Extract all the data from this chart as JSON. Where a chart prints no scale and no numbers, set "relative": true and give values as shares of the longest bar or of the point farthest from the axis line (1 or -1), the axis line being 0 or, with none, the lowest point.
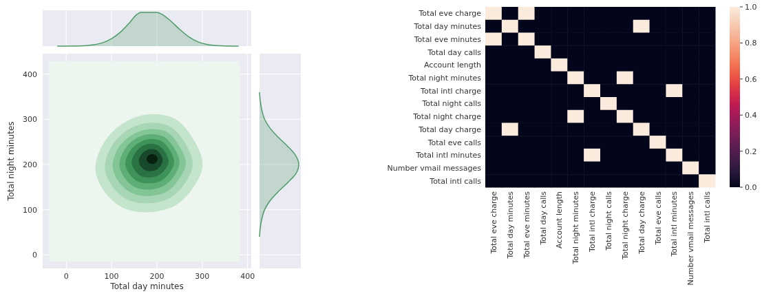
{
  "chart_data": [
    {
      "type": "area",
      "relative": true,
      "color": "#4c9a68",
      "x": [
        -20,
        40,
        60,
        80,
        100,
        120,
        140,
        155,
        165,
        200,
        210,
        230,
        250,
        270,
        290,
        310,
        340,
        380
      ],
      "values": [
        0,
        0.01,
        0.04,
        0.1,
        0.22,
        0.42,
        0.7,
        0.93,
        1,
        1,
        0.95,
        0.75,
        0.5,
        0.28,
        0.13,
        0.05,
        0.01,
        0
      ],
      "xlim": [
        -52,
        408
      ],
      "xticks": [
        0,
        100,
        200,
        300,
        400
      ],
      "tick_labels": false,
      "grid": "x"
    },
    {
      "type": "area",
      "xlabel": "Total day minutes",
      "ylabel": "Total night minutes",
      "xlim": [
        -52,
        408
      ],
      "ylim": [
        -30,
        445
      ],
      "xticks": [
        0,
        100,
        200,
        300,
        400
      ],
      "yticks": [
        0,
        100,
        200,
        300,
        400
      ],
      "grid": true,
      "series": [
        {
          "color": "#c4e4cc",
          "x": [
            300,
            280,
            240,
            180,
            125,
            85,
            65,
            85,
            125,
            180,
            240,
            280
          ],
          "values": [
            200,
            255,
            300,
            310,
            290,
            250,
            190,
            140,
            105,
            95,
            110,
            150
          ]
        },
        {
          "color": "#a6d6b3",
          "x": [
            278,
            262,
            229,
            180,
            135,
            102,
            86,
            102,
            135,
            180,
            229,
            262
          ],
          "values": [
            201,
            246,
            283,
            291,
            275,
            242,
            193,
            152,
            123,
            115,
            127,
            160
          ]
        },
        {
          "color": "#84c598",
          "x": [
            263,
            249,
            222,
            181,
            144,
            116,
            103,
            116,
            144,
            181,
            222,
            249
          ],
          "values": [
            203,
            240,
            271,
            277,
            264,
            237,
            196,
            162,
            138,
            131,
            141,
            169
          ]
        },
        {
          "color": "#5eae78",
          "x": [
            249,
            238,
            216,
            182,
            151,
            129,
            118,
            129,
            151,
            182,
            216,
            238
          ],
          "values": [
            204,
            235,
            260,
            266,
            255,
            232,
            199,
            171,
            151,
            145,
            154,
            176
          ]
        },
        {
          "color": "#3d935a",
          "x": [
            237,
            228,
            210,
            183,
            158,
            140,
            131,
            140,
            158,
            183,
            210,
            228
          ],
          "values": [
            206,
            231,
            251,
            255,
            246,
            228,
            201,
            179,
            163,
            159,
            165,
            183
          ]
        },
        {
          "color": "#2a7243",
          "x": [
            225,
            218,
            204,
            184,
            165,
            152,
            145,
            152,
            165,
            184,
            204,
            218
          ],
          "values": [
            207,
            226,
            241,
            245,
            238,
            224,
            204,
            187,
            175,
            172,
            177,
            190
          ]
        },
        {
          "color": "#18492b",
          "x": [
            212,
            208,
            199,
            186,
            174,
            165,
            161,
            165,
            174,
            186,
            199,
            208
          ],
          "values": [
            209,
            221,
            231,
            233,
            229,
            220,
            207,
            196,
            188,
            186,
            189,
            198
          ]
        },
        {
          "color": "#07200f",
          "x": [
            201,
            198,
            190,
            181,
            178,
            181,
            190,
            198
          ],
          "values": [
            212,
            219,
            222,
            219,
            212,
            205,
            202,
            205
          ]
        }
      ]
    },
    {
      "type": "area",
      "orientation": "horizontal",
      "relative": true,
      "color": "#4c9a68",
      "x": [
        360,
        340,
        320,
        300,
        280,
        260,
        240,
        220,
        200,
        180,
        160,
        140,
        120,
        100,
        80,
        60,
        40
      ],
      "values": [
        0,
        0.02,
        0.06,
        0.13,
        0.27,
        0.48,
        0.72,
        0.92,
        1,
        0.93,
        0.72,
        0.48,
        0.27,
        0.13,
        0.06,
        0.02,
        0
      ],
      "ylim": [
        -30,
        445
      ],
      "yticks": [
        0,
        100,
        200,
        300,
        400
      ],
      "tick_labels": false,
      "grid": "y"
    },
    {
      "type": "heatmap",
      "categories": [
        "Total eve charge",
        "Total day minutes",
        "Total eve minutes",
        "Total day calls",
        "Account length",
        "Total night minutes",
        "Total intl charge",
        "Total night calls",
        "Total night charge",
        "Total day charge",
        "Total eve calls",
        "Total intl minutes",
        "Number vmail messages",
        "Total intl calls"
      ],
      "y_categories": [
        "Total eve charge",
        "Total day minutes",
        "Total eve minutes",
        "Total day calls",
        "Account length",
        "Total night minutes",
        "Total intl charge",
        "Total night calls",
        "Total night charge",
        "Total day charge",
        "Total eve calls",
        "Total intl minutes",
        "Number vmail messages",
        "Total intl calls"
      ],
      "cells": [
        [
          1,
          0,
          1,
          0,
          0,
          0,
          0,
          0,
          0,
          0,
          0,
          0,
          0,
          0
        ],
        [
          0,
          1,
          0,
          0,
          0,
          0,
          0,
          0,
          0,
          1,
          0,
          0,
          0,
          0
        ],
        [
          1,
          0,
          1,
          0,
          0,
          0,
          0,
          0,
          0,
          0,
          0,
          0,
          0,
          0
        ],
        [
          0,
          0,
          0,
          1,
          0,
          0,
          0,
          0,
          0,
          0,
          0,
          0,
          0,
          0
        ],
        [
          0,
          0,
          0,
          0,
          1,
          0,
          0,
          0,
          0,
          0,
          0,
          0,
          0,
          0
        ],
        [
          0,
          0,
          0,
          0,
          0,
          1,
          0,
          0,
          1,
          0,
          0,
          0,
          0,
          0
        ],
        [
          0,
          0,
          0,
          0,
          0,
          0,
          1,
          0,
          0,
          0,
          0,
          1,
          0,
          0
        ],
        [
          0,
          0,
          0,
          0,
          0,
          0,
          0,
          1,
          0,
          0,
          0,
          0,
          0,
          0
        ],
        [
          0,
          0,
          0,
          0,
          0,
          1,
          0,
          0,
          1,
          0,
          0,
          0,
          0,
          0
        ],
        [
          0,
          1,
          0,
          0,
          0,
          0,
          0,
          0,
          0,
          1,
          0,
          0,
          0,
          0
        ],
        [
          0,
          0,
          0,
          0,
          0,
          0,
          0,
          0,
          0,
          0,
          1,
          0,
          0,
          0
        ],
        [
          0,
          0,
          0,
          0,
          0,
          0,
          1,
          0,
          0,
          0,
          0,
          1,
          0,
          0
        ],
        [
          0,
          0,
          0,
          0,
          0,
          0,
          0,
          0,
          0,
          0,
          0,
          0,
          1,
          0
        ],
        [
          0,
          0,
          0,
          0,
          0,
          0,
          0,
          0,
          0,
          0,
          0,
          0,
          0,
          1
        ]
      ],
      "clim": [
        0,
        1
      ],
      "cticks": [
        {
          "value": 0,
          "label": "0.0"
        },
        {
          "value": 0.2,
          "label": "0.2"
        },
        {
          "value": 0.4,
          "label": "0.4"
        },
        {
          "value": 0.6,
          "label": "0.6"
        },
        {
          "value": 0.8,
          "label": "0.8"
        },
        {
          "value": 1,
          "label": "1.0"
        }
      ]
    }
  ]
}
